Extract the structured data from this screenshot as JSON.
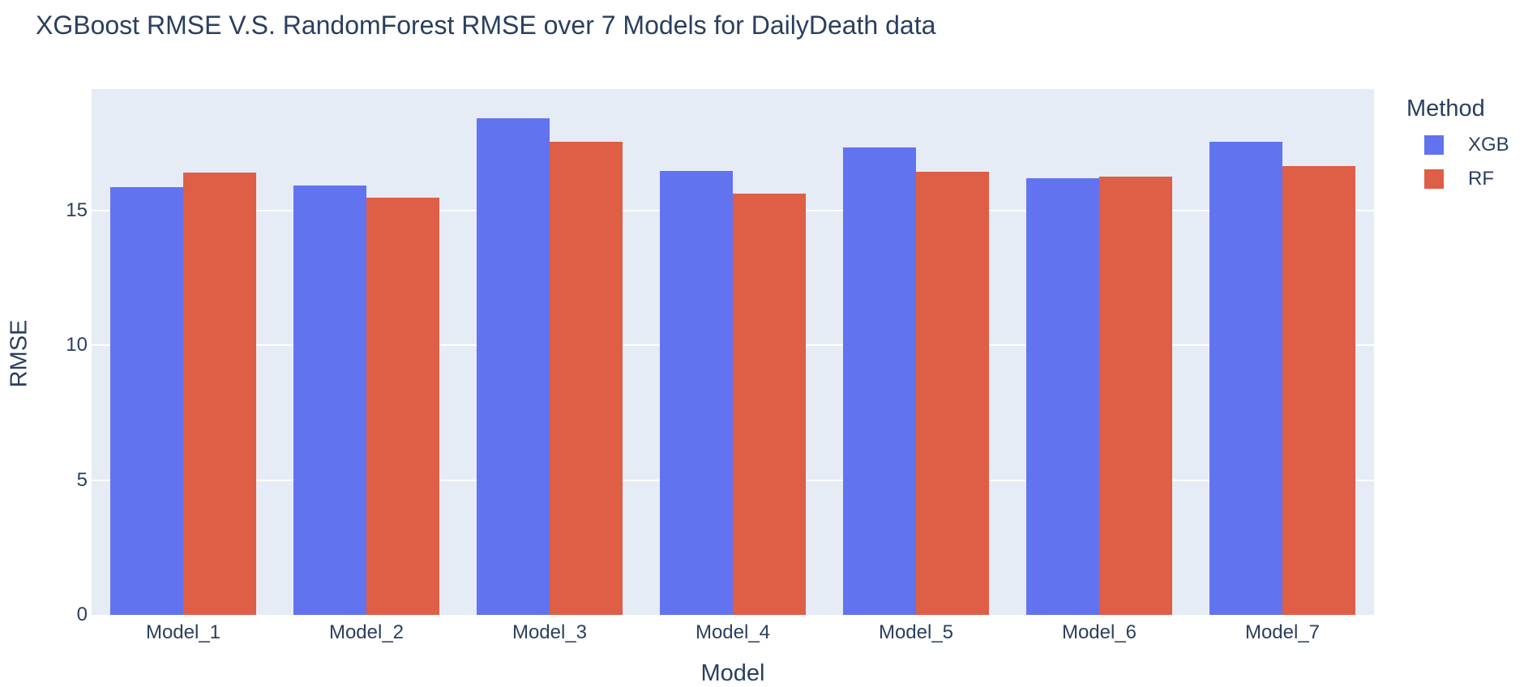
{
  "chart_data": {
    "type": "bar",
    "title": "XGBoost RMSE V.S. RandomForest RMSE over 7 Models for DailyDeath data",
    "xlabel": "Model",
    "ylabel": "RMSE",
    "legend_title": "Method",
    "legend_position": "right",
    "grid": true,
    "categories": [
      "Model_1",
      "Model_2",
      "Model_3",
      "Model_4",
      "Model_5",
      "Model_6",
      "Model_7"
    ],
    "series": [
      {
        "name": "XGB",
        "color": "#6273f0",
        "values": [
          15.86,
          15.93,
          18.43,
          16.47,
          17.33,
          16.18,
          17.56
        ]
      },
      {
        "name": "RF",
        "color": "#de5e46",
        "values": [
          16.41,
          15.47,
          17.56,
          15.61,
          16.44,
          16.27,
          16.64
        ]
      }
    ],
    "ylim": [
      0,
      19.5
    ],
    "yticks": [
      0,
      5,
      10,
      15
    ],
    "colors": {
      "plot_background": "#e5ecf6",
      "gridline": "#ffffff",
      "font": "#2a3f5f",
      "page_background": "#ffffff"
    }
  }
}
